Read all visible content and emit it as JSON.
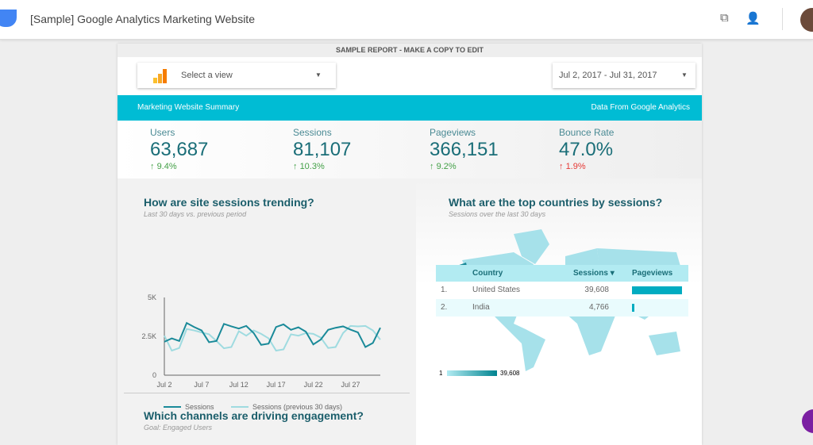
{
  "app": {
    "title": "[Sample] Google Analytics Marketing Website",
    "icons": [
      "copy-icon",
      "add-person-icon"
    ]
  },
  "report": {
    "banner": "SAMPLE REPORT - MAKE A COPY TO EDIT",
    "view_select": {
      "placeholder": "Select a view"
    },
    "date_range": "Jul 2, 2017 - Jul 31, 2017",
    "header_left": "Marketing Website Summary",
    "header_right": "Data From Google Analytics",
    "kpis": [
      {
        "label": "Users",
        "value": "63,687",
        "delta": "9.4%",
        "direction": "up",
        "color": "#43a047"
      },
      {
        "label": "Sessions",
        "value": "81,107",
        "delta": "10.3%",
        "direction": "up",
        "color": "#43a047"
      },
      {
        "label": "Pageviews",
        "value": "366,151",
        "delta": "9.2%",
        "direction": "up",
        "color": "#43a047"
      },
      {
        "label": "Bounce Rate",
        "value": "47.0%",
        "delta": "1.9%",
        "direction": "up",
        "color": "#e53935"
      }
    ],
    "trend": {
      "title": "How are site sessions trending?",
      "subtitle": "Last 30 days vs. previous period"
    },
    "map": {
      "title": "What are the top countries by sessions?",
      "subtitle": "Sessions over the last 30 days",
      "scale_min": "1",
      "scale_max": "39,608"
    },
    "countries": {
      "headers": [
        "Country",
        "Sessions ▾",
        "Pageviews"
      ],
      "rows": [
        {
          "rank": "1.",
          "country": "United States",
          "sessions": "39,608",
          "pageviews_fraction": 1.0
        },
        {
          "rank": "2.",
          "country": "India",
          "sessions": "4,766",
          "pageviews_fraction": 0.05
        }
      ]
    },
    "channels": {
      "title": "Which channels are driving engagement?",
      "subtitle": "Goal: Engaged Users"
    }
  },
  "chart_data": {
    "type": "line",
    "x": [
      "Jul 2",
      "Jul 3",
      "Jul 4",
      "Jul 5",
      "Jul 6",
      "Jul 7",
      "Jul 8",
      "Jul 9",
      "Jul 10",
      "Jul 11",
      "Jul 12",
      "Jul 13",
      "Jul 14",
      "Jul 15",
      "Jul 16",
      "Jul 17",
      "Jul 18",
      "Jul 19",
      "Jul 20",
      "Jul 21",
      "Jul 22",
      "Jul 23",
      "Jul 24",
      "Jul 25",
      "Jul 26",
      "Jul 27",
      "Jul 28",
      "Jul 29",
      "Jul 30",
      "Jul 31"
    ],
    "xticks": [
      "Jul 2",
      "Jul 7",
      "Jul 12",
      "Jul 17",
      "Jul 22",
      "Jul 27"
    ],
    "yticks": [
      "0",
      "2.5K",
      "5K"
    ],
    "ylim": [
      0,
      5000
    ],
    "legend": "bottom",
    "series": [
      {
        "name": "Sessions",
        "color": "#1a8a99",
        "values": [
          2150,
          2370,
          2200,
          3360,
          3100,
          2880,
          2120,
          2200,
          3300,
          3140,
          3000,
          3170,
          2710,
          1950,
          2030,
          3100,
          3270,
          2920,
          3080,
          2800,
          1980,
          2290,
          2920,
          3050,
          3140,
          2930,
          2750,
          1810,
          2070,
          3050
        ]
      },
      {
        "name": "Sessions (previous 30 days)",
        "color": "#9fdbe0",
        "values": [
          2540,
          1580,
          1750,
          2970,
          2880,
          2750,
          2630,
          2200,
          1730,
          1810,
          2830,
          2540,
          2880,
          2660,
          2370,
          1580,
          1660,
          2630,
          2540,
          2710,
          2660,
          2420,
          1750,
          1810,
          2710,
          3170,
          3140,
          3170,
          2880,
          2290
        ]
      }
    ]
  }
}
